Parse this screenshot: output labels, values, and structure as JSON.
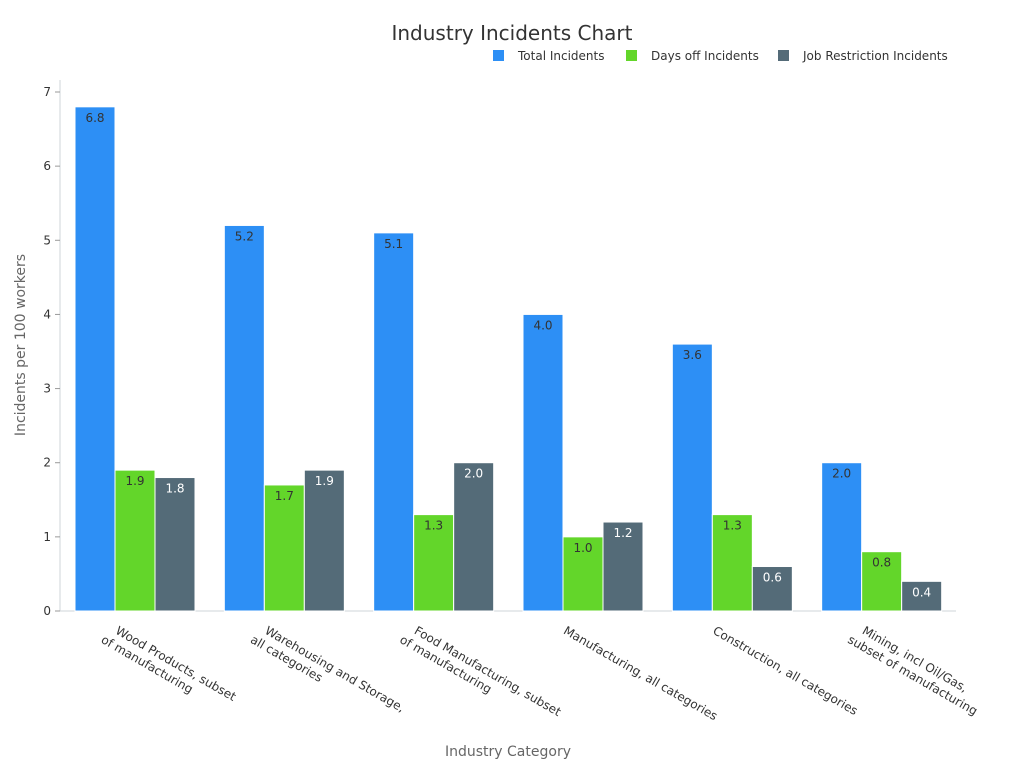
{
  "chart_data": {
    "type": "bar",
    "title": "Industry Incidents Chart",
    "xlabel": "Industry Category",
    "ylabel": "Incidents per 100 workers",
    "ylim": [
      0,
      7
    ],
    "yticks": [
      0,
      1,
      2,
      3,
      4,
      5,
      6,
      7
    ],
    "grid": false,
    "legend_position": "top-right",
    "categories": [
      [
        "Wood Products, subset",
        "of manufacturing"
      ],
      [
        "Warehousing and Storage,",
        "all categories"
      ],
      [
        "Food Manufacturing, subset",
        "of manufacturing"
      ],
      [
        "Manufacturing, all categories"
      ],
      [
        "Construction, all categories"
      ],
      [
        "Mining, incl Oil/Gas,",
        "subset of manufacturing"
      ]
    ],
    "series": [
      {
        "name": "Total Incidents",
        "color": "#2d8ff5",
        "label_color": "#333333",
        "values": [
          6.8,
          5.2,
          5.1,
          4.0,
          3.6,
          2.0
        ]
      },
      {
        "name": "Days off Incidents",
        "color": "#63d62a",
        "label_color": "#333333",
        "values": [
          1.9,
          1.7,
          1.3,
          1.0,
          1.3,
          0.8
        ]
      },
      {
        "name": "Job Restriction Incidents",
        "color": "#546b78",
        "label_color": "#ffffff",
        "values": [
          1.8,
          1.9,
          2.0,
          1.2,
          0.6,
          0.4
        ]
      }
    ]
  }
}
